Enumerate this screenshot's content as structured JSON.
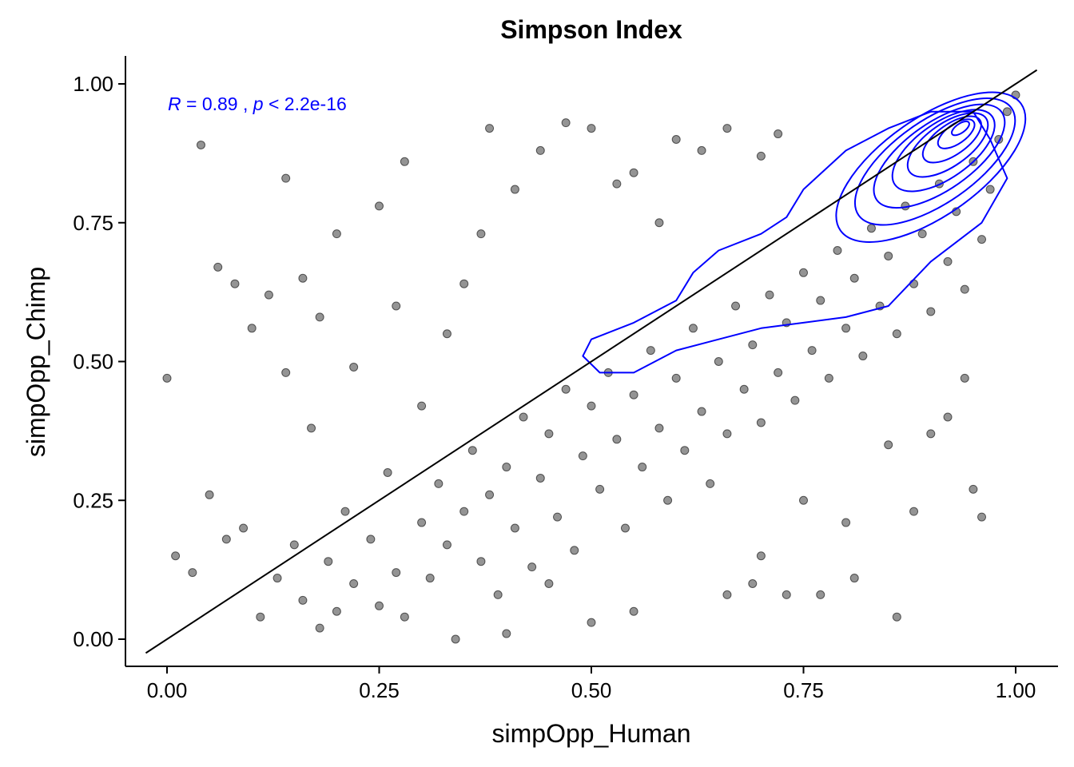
{
  "chart_data": {
    "type": "scatter",
    "title": "Simpson Index",
    "xlabel": "simpOpp_Human",
    "ylabel": "simpOpp_Chimp",
    "xlim": [
      -0.025,
      1.025
    ],
    "ylim": [
      -0.048,
      1.05
    ],
    "x_ticks": [
      0.0,
      0.25,
      0.5,
      0.75,
      1.0
    ],
    "y_ticks": [
      0.0,
      0.25,
      0.5,
      0.75,
      1.0
    ],
    "x_tick_labels": [
      "0.00",
      "0.25",
      "0.50",
      "0.75",
      "1.00"
    ],
    "y_tick_labels": [
      "0.00",
      "0.25",
      "0.50",
      "0.75",
      "1.00"
    ],
    "grid": false,
    "annotation": {
      "r_symbol": "R",
      "r_value": " = 0.89 , ",
      "p_symbol": "p",
      "p_value": " < 2.2e-16",
      "color": "#0000ff"
    },
    "reference_line": {
      "slope": 1,
      "intercept": 0,
      "color": "#000000"
    },
    "point_color": "#000000",
    "point_alpha": 0.42,
    "density_contours": {
      "color": "#0000ff",
      "outer": [
        [
          0.49,
          0.51
        ],
        [
          0.5,
          0.54
        ],
        [
          0.55,
          0.57
        ],
        [
          0.6,
          0.61
        ],
        [
          0.62,
          0.66
        ],
        [
          0.65,
          0.7
        ],
        [
          0.7,
          0.73
        ],
        [
          0.73,
          0.76
        ],
        [
          0.75,
          0.81
        ],
        [
          0.8,
          0.88
        ],
        [
          0.85,
          0.92
        ],
        [
          0.9,
          0.95
        ],
        [
          0.95,
          0.95
        ],
        [
          0.97,
          0.9
        ],
        [
          0.99,
          0.83
        ],
        [
          0.96,
          0.75
        ],
        [
          0.9,
          0.68
        ],
        [
          0.85,
          0.6
        ],
        [
          0.8,
          0.58
        ],
        [
          0.75,
          0.57
        ],
        [
          0.7,
          0.56
        ],
        [
          0.65,
          0.54
        ],
        [
          0.6,
          0.52
        ],
        [
          0.55,
          0.48
        ],
        [
          0.51,
          0.48
        ]
      ],
      "rings": [
        {
          "cx": 0.9,
          "cy": 0.85,
          "rx": 0.13,
          "ry": 0.16,
          "rot": 35
        },
        {
          "cx": 0.905,
          "cy": 0.86,
          "rx": 0.11,
          "ry": 0.135,
          "rot": 35
        },
        {
          "cx": 0.91,
          "cy": 0.87,
          "rx": 0.09,
          "ry": 0.11,
          "rot": 35
        },
        {
          "cx": 0.915,
          "cy": 0.88,
          "rx": 0.07,
          "ry": 0.09,
          "rot": 35
        },
        {
          "cx": 0.92,
          "cy": 0.89,
          "rx": 0.055,
          "ry": 0.07,
          "rot": 35
        },
        {
          "cx": 0.925,
          "cy": 0.9,
          "rx": 0.04,
          "ry": 0.05,
          "rot": 35
        },
        {
          "cx": 0.93,
          "cy": 0.91,
          "rx": 0.025,
          "ry": 0.032,
          "rot": 35
        },
        {
          "cx": 0.935,
          "cy": 0.92,
          "rx": 0.012,
          "ry": 0.015,
          "rot": 35
        }
      ]
    },
    "points": [
      [
        0.0,
        0.47
      ],
      [
        0.01,
        0.15
      ],
      [
        0.04,
        0.89
      ],
      [
        0.06,
        0.67
      ],
      [
        0.08,
        0.64
      ],
      [
        0.1,
        0.56
      ],
      [
        0.12,
        0.62
      ],
      [
        0.14,
        0.83
      ],
      [
        0.14,
        0.48
      ],
      [
        0.16,
        0.65
      ],
      [
        0.17,
        0.38
      ],
      [
        0.18,
        0.58
      ],
      [
        0.2,
        0.73
      ],
      [
        0.22,
        0.49
      ],
      [
        0.25,
        0.78
      ],
      [
        0.27,
        0.6
      ],
      [
        0.28,
        0.86
      ],
      [
        0.3,
        0.42
      ],
      [
        0.33,
        0.55
      ],
      [
        0.35,
        0.64
      ],
      [
        0.37,
        0.73
      ],
      [
        0.38,
        0.92
      ],
      [
        0.41,
        0.81
      ],
      [
        0.44,
        0.88
      ],
      [
        0.47,
        0.93
      ],
      [
        0.5,
        0.92
      ],
      [
        0.53,
        0.82
      ],
      [
        0.55,
        0.84
      ],
      [
        0.58,
        0.75
      ],
      [
        0.6,
        0.9
      ],
      [
        0.63,
        0.88
      ],
      [
        0.66,
        0.92
      ],
      [
        0.7,
        0.87
      ],
      [
        0.72,
        0.91
      ],
      [
        0.03,
        0.12
      ],
      [
        0.05,
        0.26
      ],
      [
        0.07,
        0.18
      ],
      [
        0.09,
        0.2
      ],
      [
        0.11,
        0.04
      ],
      [
        0.13,
        0.11
      ],
      [
        0.15,
        0.17
      ],
      [
        0.16,
        0.07
      ],
      [
        0.18,
        0.02
      ],
      [
        0.19,
        0.14
      ],
      [
        0.2,
        0.05
      ],
      [
        0.21,
        0.23
      ],
      [
        0.22,
        0.1
      ],
      [
        0.24,
        0.18
      ],
      [
        0.25,
        0.06
      ],
      [
        0.26,
        0.3
      ],
      [
        0.27,
        0.12
      ],
      [
        0.28,
        0.04
      ],
      [
        0.3,
        0.21
      ],
      [
        0.31,
        0.11
      ],
      [
        0.32,
        0.28
      ],
      [
        0.33,
        0.17
      ],
      [
        0.34,
        0.0
      ],
      [
        0.35,
        0.23
      ],
      [
        0.36,
        0.34
      ],
      [
        0.37,
        0.14
      ],
      [
        0.38,
        0.26
      ],
      [
        0.39,
        0.08
      ],
      [
        0.4,
        0.31
      ],
      [
        0.41,
        0.2
      ],
      [
        0.42,
        0.4
      ],
      [
        0.43,
        0.13
      ],
      [
        0.44,
        0.29
      ],
      [
        0.45,
        0.37
      ],
      [
        0.46,
        0.22
      ],
      [
        0.47,
        0.45
      ],
      [
        0.48,
        0.16
      ],
      [
        0.49,
        0.33
      ],
      [
        0.5,
        0.42
      ],
      [
        0.51,
        0.27
      ],
      [
        0.52,
        0.48
      ],
      [
        0.53,
        0.36
      ],
      [
        0.54,
        0.2
      ],
      [
        0.55,
        0.44
      ],
      [
        0.56,
        0.31
      ],
      [
        0.57,
        0.52
      ],
      [
        0.58,
        0.38
      ],
      [
        0.59,
        0.25
      ],
      [
        0.6,
        0.47
      ],
      [
        0.61,
        0.34
      ],
      [
        0.62,
        0.56
      ],
      [
        0.63,
        0.41
      ],
      [
        0.64,
        0.28
      ],
      [
        0.65,
        0.5
      ],
      [
        0.66,
        0.37
      ],
      [
        0.67,
        0.6
      ],
      [
        0.68,
        0.45
      ],
      [
        0.69,
        0.53
      ],
      [
        0.7,
        0.39
      ],
      [
        0.71,
        0.62
      ],
      [
        0.72,
        0.48
      ],
      [
        0.73,
        0.57
      ],
      [
        0.74,
        0.43
      ],
      [
        0.75,
        0.66
      ],
      [
        0.76,
        0.52
      ],
      [
        0.77,
        0.61
      ],
      [
        0.78,
        0.47
      ],
      [
        0.79,
        0.7
      ],
      [
        0.8,
        0.56
      ],
      [
        0.81,
        0.65
      ],
      [
        0.82,
        0.51
      ],
      [
        0.83,
        0.74
      ],
      [
        0.84,
        0.6
      ],
      [
        0.85,
        0.69
      ],
      [
        0.86,
        0.55
      ],
      [
        0.87,
        0.78
      ],
      [
        0.88,
        0.64
      ],
      [
        0.89,
        0.73
      ],
      [
        0.9,
        0.59
      ],
      [
        0.91,
        0.82
      ],
      [
        0.92,
        0.68
      ],
      [
        0.93,
        0.77
      ],
      [
        0.94,
        0.63
      ],
      [
        0.95,
        0.86
      ],
      [
        0.96,
        0.72
      ],
      [
        0.97,
        0.81
      ],
      [
        0.98,
        0.9
      ],
      [
        0.99,
        0.95
      ],
      [
        1.0,
        0.98
      ],
      [
        0.96,
        0.22
      ],
      [
        0.95,
        0.27
      ],
      [
        0.86,
        0.04
      ],
      [
        0.9,
        0.37
      ],
      [
        0.88,
        0.23
      ],
      [
        0.8,
        0.21
      ],
      [
        0.77,
        0.08
      ],
      [
        0.73,
        0.08
      ],
      [
        0.66,
        0.08
      ],
      [
        0.69,
        0.1
      ],
      [
        0.55,
        0.05
      ],
      [
        0.5,
        0.03
      ],
      [
        0.45,
        0.1
      ],
      [
        0.4,
        0.01
      ],
      [
        0.81,
        0.11
      ],
      [
        0.7,
        0.15
      ],
      [
        0.75,
        0.25
      ],
      [
        0.85,
        0.35
      ],
      [
        0.92,
        0.4
      ],
      [
        0.94,
        0.47
      ]
    ]
  }
}
